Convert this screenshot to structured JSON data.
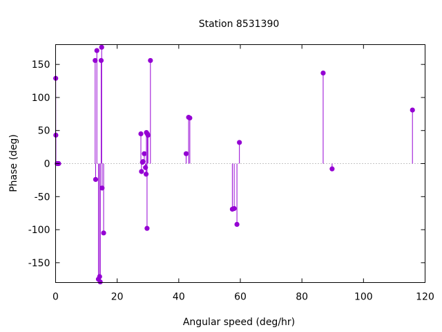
{
  "chart_data": {
    "type": "scatter",
    "style": "impulses",
    "title": "Station 8531390",
    "xlabel": "Angular speed (deg/hr)",
    "ylabel": "Phase (deg)",
    "xlim": [
      0,
      120
    ],
    "ylim": [
      -180,
      180
    ],
    "xticks": [
      0,
      20,
      40,
      60,
      80,
      100,
      120
    ],
    "yticks": [
      -150,
      -100,
      -50,
      0,
      50,
      100,
      150
    ],
    "grid": false,
    "zero_line": true,
    "color": "#9400d3",
    "points": [
      {
        "x": 0.04,
        "y": 129
      },
      {
        "x": 0.08,
        "y": 43
      },
      {
        "x": 0.5,
        "y": 0
      },
      {
        "x": 0.8,
        "y": 0
      },
      {
        "x": 1.0,
        "y": 0
      },
      {
        "x": 12.85,
        "y": 156
      },
      {
        "x": 13.0,
        "y": -24
      },
      {
        "x": 13.4,
        "y": 171
      },
      {
        "x": 13.9,
        "y": -175
      },
      {
        "x": 14.3,
        "y": -171
      },
      {
        "x": 14.5,
        "y": -179
      },
      {
        "x": 14.8,
        "y": 156
      },
      {
        "x": 14.96,
        "y": 176
      },
      {
        "x": 15.1,
        "y": -37
      },
      {
        "x": 15.6,
        "y": -105
      },
      {
        "x": 27.7,
        "y": 45
      },
      {
        "x": 27.9,
        "y": -12
      },
      {
        "x": 28.2,
        "y": 2
      },
      {
        "x": 28.4,
        "y": 3
      },
      {
        "x": 28.8,
        "y": 15
      },
      {
        "x": 29.2,
        "y": -6
      },
      {
        "x": 29.4,
        "y": -16
      },
      {
        "x": 29.5,
        "y": 47
      },
      {
        "x": 29.7,
        "y": -98
      },
      {
        "x": 29.8,
        "y": 45
      },
      {
        "x": 30.0,
        "y": 43
      },
      {
        "x": 30.8,
        "y": 156
      },
      {
        "x": 42.4,
        "y": 15
      },
      {
        "x": 43.2,
        "y": 70
      },
      {
        "x": 43.6,
        "y": 69
      },
      {
        "x": 57.4,
        "y": -69
      },
      {
        "x": 58.0,
        "y": -68
      },
      {
        "x": 58.9,
        "y": -92
      },
      {
        "x": 59.7,
        "y": 32
      },
      {
        "x": 86.9,
        "y": 137
      },
      {
        "x": 89.8,
        "y": -8
      },
      {
        "x": 115.9,
        "y": 81
      }
    ]
  }
}
